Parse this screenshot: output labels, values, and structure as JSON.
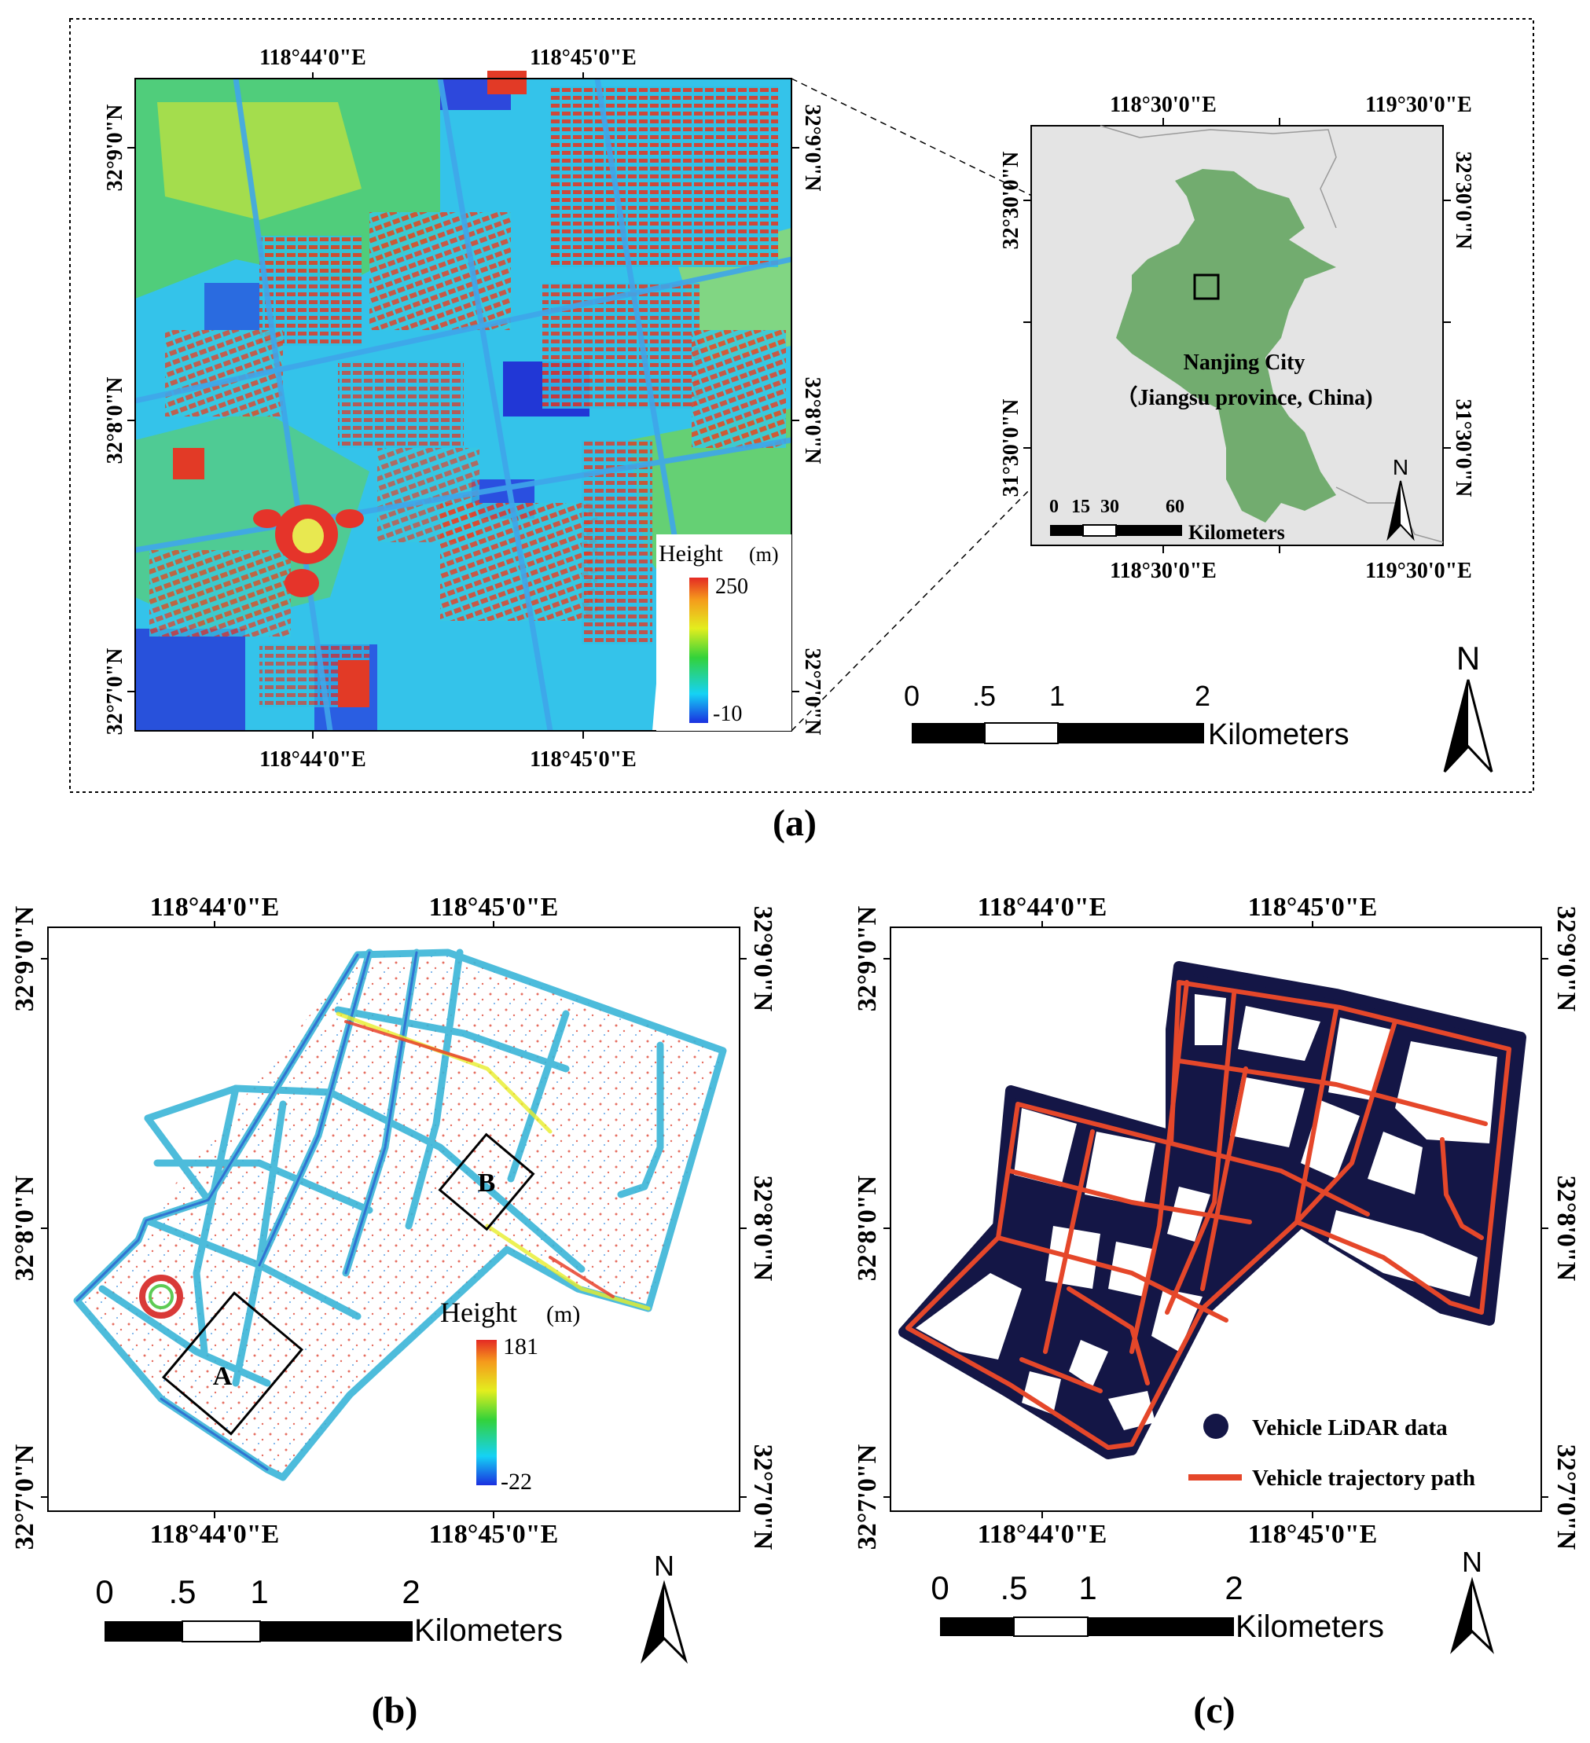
{
  "panel_a": {
    "caption": "(a)",
    "main_map": {
      "top_lon": [
        "118°44'0\"E",
        "118°45'0\"E"
      ],
      "bottom_lon": [
        "118°44'0\"E",
        "118°45'0\"E"
      ],
      "left_lat": [
        "32°9'0\"N",
        "32°8'0\"N",
        "32°7'0\"N"
      ],
      "right_lat": [
        "32°9'0\"N",
        "32°8'0\"N",
        "32°7'0\"N"
      ],
      "legend": {
        "title": "Height",
        "unit": "(m)",
        "max": "250",
        "min": "-10"
      },
      "scale": {
        "ticks": [
          "0",
          ".5",
          "1",
          "2"
        ],
        "unit": "Kilometers"
      },
      "north": "N"
    },
    "inset_map": {
      "top_lon": [
        "118°30'0\"E",
        "119°30'0\"E"
      ],
      "bottom_lon": [
        "118°30'0\"E",
        "119°30'0\"E"
      ],
      "left_lat": [
        "32°30'0\"N",
        "31°30'0\"N"
      ],
      "right_lat": [
        "32°30'0\"N",
        "31°30'0\"N"
      ],
      "region_label_1": "Nanjing City",
      "region_label_2": "（Jiangsu province, China)",
      "scale": {
        "ticks": [
          "0",
          "15",
          "30",
          "60"
        ],
        "unit": "Kilometers"
      },
      "north": "N"
    }
  },
  "panel_b": {
    "caption": "(b)",
    "top_lon": [
      "118°44'0\"E",
      "118°45'0\"E"
    ],
    "bottom_lon": [
      "118°44'0\"E",
      "118°45'0\"E"
    ],
    "left_lat": [
      "32°9'0\"N",
      "32°8'0\"N",
      "32°7'0\"N"
    ],
    "right_lat": [
      "32°9'0\"N",
      "32°8'0\"N",
      "32°7'0\"N"
    ],
    "legend": {
      "title": "Height",
      "unit": "(m)",
      "max": "181",
      "min": "-22"
    },
    "box_labels": [
      "A",
      "B"
    ],
    "scale": {
      "ticks": [
        "0",
        ".5",
        "1",
        "2"
      ],
      "unit": "Kilometers"
    },
    "north": "N"
  },
  "panel_c": {
    "caption": "(c)",
    "top_lon": [
      "118°44'0\"E",
      "118°45'0\"E"
    ],
    "bottom_lon": [
      "118°44'0\"E",
      "118°45'0\"E"
    ],
    "left_lat": [
      "32°9'0\"N",
      "32°8'0\"N",
      "32°7'0\"N"
    ],
    "right_lat": [
      "32°9'0\"N",
      "32°8'0\"N",
      "32°7'0\"N"
    ],
    "legend": [
      {
        "label": "Vehicle LiDAR data",
        "color": "#141646"
      },
      {
        "label": "Vehicle trajectory path",
        "color": "#e5472a"
      }
    ],
    "scale": {
      "ticks": [
        "0",
        ".5",
        "1",
        "2"
      ],
      "unit": "Kilometers"
    },
    "north": "N"
  },
  "colors": {
    "lidar_cyan": "#2fc4e8",
    "lidar_red": "#e23a26",
    "lidar_blue": "#1f3fd0",
    "lidar_green": "#5ed24a",
    "nanjing_green": "#72ac6f",
    "inset_bg": "#e4e4e4",
    "point_dark": "#141646",
    "path_red": "#e5472a"
  }
}
